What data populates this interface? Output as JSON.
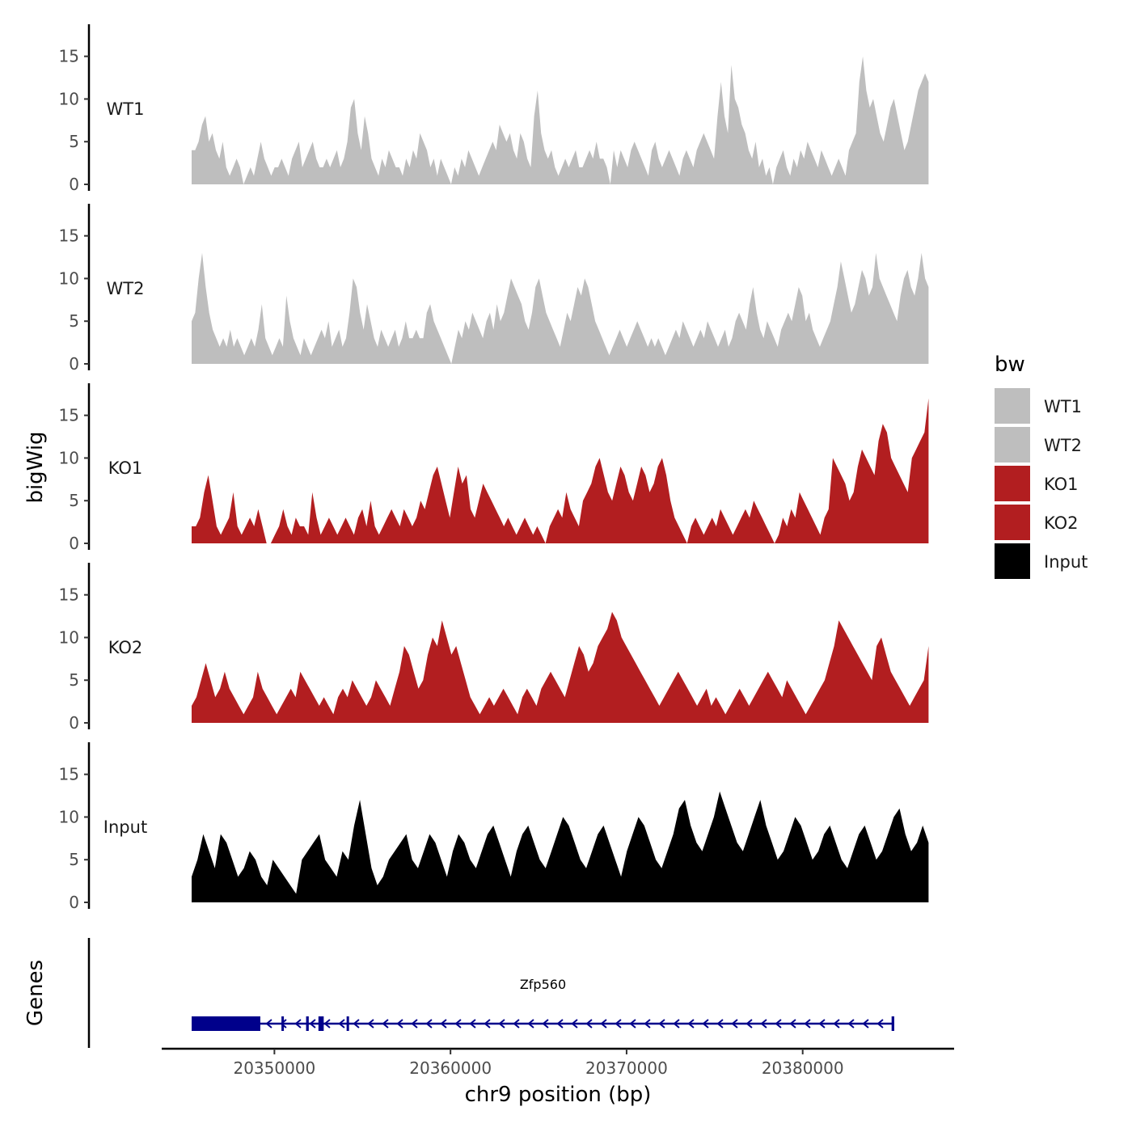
{
  "chart_data": {
    "type": "area",
    "chromosome": "chr9",
    "xlabel": "chr9 position (bp)",
    "ylabel": "bigWig",
    "genes_label": "Genes",
    "xlim": [
      20343600,
      20388600
    ],
    "x_range": [
      20345300,
      20387150
    ],
    "x_ticks": [
      20350000,
      20360000,
      20370000,
      20380000
    ],
    "x_tick_labels": [
      "20350000",
      "20360000",
      "20370000",
      "20380000"
    ],
    "ylim": [
      0,
      18
    ],
    "y_ticks": [
      0,
      5,
      10,
      15
    ],
    "y_tick_labels": [
      "0",
      "5",
      "10",
      "15"
    ],
    "legend": {
      "title": "bw",
      "position": "right",
      "entries": [
        {
          "label": "WT1",
          "color": "#bebebe"
        },
        {
          "label": "WT2",
          "color": "#bebebe"
        },
        {
          "label": "KO1",
          "color": "#b21e20"
        },
        {
          "label": "KO2",
          "color": "#b21e20"
        },
        {
          "label": "Input",
          "color": "#000000"
        }
      ]
    },
    "series": [
      {
        "name": "WT1",
        "color": "#bebebe",
        "values": [
          4,
          4,
          5,
          7,
          8,
          5,
          6,
          4,
          3,
          5,
          2,
          1,
          2,
          3,
          2,
          0,
          1,
          2,
          1,
          3,
          5,
          3,
          2,
          1,
          2,
          2,
          3,
          2,
          1,
          3,
          4,
          5,
          2,
          3,
          4,
          5,
          3,
          2,
          2,
          3,
          2,
          3,
          4,
          2,
          3,
          5,
          9,
          10,
          6,
          4,
          8,
          6,
          3,
          2,
          1,
          3,
          2,
          4,
          3,
          2,
          2,
          1,
          3,
          2,
          4,
          3,
          6,
          5,
          4,
          2,
          3,
          1,
          3,
          2,
          1,
          0,
          2,
          1,
          3,
          2,
          4,
          3,
          2,
          1,
          2,
          3,
          4,
          5,
          4,
          7,
          6,
          5,
          6,
          4,
          3,
          6,
          5,
          3,
          2,
          8,
          11,
          6,
          4,
          3,
          4,
          2,
          1,
          2,
          3,
          2,
          3,
          4,
          2,
          2,
          3,
          4,
          3,
          5,
          3,
          3,
          2,
          0,
          4,
          2,
          4,
          3,
          2,
          4,
          5,
          4,
          3,
          2,
          1,
          4,
          5,
          3,
          2,
          3,
          4,
          3,
          2,
          1,
          3,
          4,
          3,
          2,
          4,
          5,
          6,
          5,
          4,
          3,
          8,
          12,
          8,
          6,
          14,
          10,
          9,
          7,
          6,
          4,
          3,
          5,
          2,
          3,
          1,
          2,
          0,
          2,
          3,
          4,
          2,
          1,
          3,
          2,
          4,
          3,
          5,
          4,
          3,
          2,
          4,
          3,
          2,
          1,
          2,
          3,
          2,
          1,
          4,
          5,
          6,
          12,
          15,
          11,
          9,
          10,
          8,
          6,
          5,
          7,
          9,
          10,
          8,
          6,
          4,
          5,
          7,
          9,
          11,
          12,
          13,
          12
        ]
      },
      {
        "name": "WT2",
        "color": "#bebebe",
        "values": [
          5,
          6,
          10,
          13,
          9,
          6,
          4,
          3,
          2,
          3,
          2,
          4,
          2,
          3,
          2,
          1,
          2,
          3,
          2,
          4,
          7,
          3,
          2,
          1,
          2,
          3,
          2,
          8,
          5,
          3,
          2,
          1,
          3,
          2,
          1,
          2,
          3,
          4,
          3,
          5,
          2,
          3,
          4,
          2,
          3,
          6,
          10,
          9,
          6,
          4,
          7,
          5,
          3,
          2,
          4,
          3,
          2,
          3,
          4,
          2,
          3,
          5,
          3,
          3,
          4,
          3,
          3,
          6,
          7,
          5,
          4,
          3,
          2,
          1,
          0,
          2,
          4,
          3,
          5,
          4,
          6,
          5,
          4,
          3,
          5,
          6,
          4,
          7,
          5,
          6,
          8,
          10,
          9,
          8,
          7,
          5,
          4,
          6,
          9,
          10,
          8,
          6,
          5,
          4,
          3,
          2,
          4,
          6,
          5,
          7,
          9,
          8,
          10,
          9,
          7,
          5,
          4,
          3,
          2,
          1,
          2,
          3,
          4,
          3,
          2,
          3,
          4,
          5,
          4,
          3,
          2,
          3,
          2,
          3,
          2,
          1,
          2,
          3,
          4,
          3,
          5,
          4,
          3,
          2,
          3,
          4,
          3,
          5,
          4,
          3,
          2,
          3,
          4,
          2,
          3,
          5,
          6,
          5,
          4,
          7,
          9,
          6,
          4,
          3,
          5,
          4,
          3,
          2,
          4,
          5,
          6,
          5,
          7,
          9,
          8,
          5,
          6,
          4,
          3,
          2,
          3,
          4,
          5,
          7,
          9,
          12,
          10,
          8,
          6,
          7,
          9,
          11,
          10,
          8,
          9,
          13,
          10,
          9,
          8,
          7,
          6,
          5,
          8,
          10,
          11,
          9,
          8,
          10,
          13,
          10,
          9
        ]
      },
      {
        "name": "KO1",
        "color": "#b21e20",
        "values": [
          2,
          2,
          3,
          6,
          8,
          5,
          2,
          1,
          2,
          3,
          6,
          2,
          1,
          2,
          3,
          2,
          4,
          2,
          0,
          0,
          1,
          2,
          4,
          2,
          1,
          3,
          2,
          2,
          1,
          6,
          3,
          1,
          2,
          3,
          2,
          1,
          2,
          3,
          2,
          1,
          3,
          4,
          2,
          5,
          2,
          1,
          2,
          3,
          4,
          3,
          2,
          4,
          3,
          2,
          3,
          5,
          4,
          6,
          8,
          9,
          7,
          5,
          3,
          6,
          9,
          7,
          8,
          4,
          3,
          5,
          7,
          6,
          5,
          4,
          3,
          2,
          3,
          2,
          1,
          2,
          3,
          2,
          1,
          2,
          1,
          0,
          2,
          3,
          4,
          3,
          6,
          4,
          3,
          2,
          5,
          6,
          7,
          9,
          10,
          8,
          6,
          5,
          7,
          9,
          8,
          6,
          5,
          7,
          9,
          8,
          6,
          7,
          9,
          10,
          8,
          5,
          3,
          2,
          1,
          0,
          2,
          3,
          2,
          1,
          2,
          3,
          2,
          4,
          3,
          2,
          1,
          2,
          3,
          4,
          3,
          5,
          4,
          3,
          2,
          1,
          0,
          1,
          3,
          2,
          4,
          3,
          6,
          5,
          4,
          3,
          2,
          1,
          3,
          4,
          10,
          9,
          8,
          7,
          5,
          6,
          9,
          11,
          10,
          9,
          8,
          12,
          14,
          13,
          10,
          9,
          8,
          7,
          6,
          10,
          11,
          12,
          13,
          17
        ]
      },
      {
        "name": "KO2",
        "color": "#b21e20",
        "values": [
          2,
          3,
          5,
          7,
          5,
          3,
          4,
          6,
          4,
          3,
          2,
          1,
          2,
          3,
          6,
          4,
          3,
          2,
          1,
          2,
          3,
          4,
          3,
          6,
          5,
          4,
          3,
          2,
          3,
          2,
          1,
          3,
          4,
          3,
          5,
          4,
          3,
          2,
          3,
          5,
          4,
          3,
          2,
          4,
          6,
          9,
          8,
          6,
          4,
          5,
          8,
          10,
          9,
          12,
          10,
          8,
          9,
          7,
          5,
          3,
          2,
          1,
          2,
          3,
          2,
          3,
          4,
          3,
          2,
          1,
          3,
          4,
          3,
          2,
          4,
          5,
          6,
          5,
          4,
          3,
          5,
          7,
          9,
          8,
          6,
          7,
          9,
          10,
          11,
          13,
          12,
          10,
          9,
          8,
          7,
          6,
          5,
          4,
          3,
          2,
          3,
          4,
          5,
          6,
          5,
          4,
          3,
          2,
          3,
          4,
          2,
          3,
          2,
          1,
          2,
          3,
          4,
          3,
          2,
          3,
          4,
          5,
          6,
          5,
          4,
          3,
          5,
          4,
          3,
          2,
          1,
          2,
          3,
          4,
          5,
          7,
          9,
          12,
          11,
          10,
          9,
          8,
          7,
          6,
          5,
          9,
          10,
          8,
          6,
          5,
          4,
          3,
          2,
          3,
          4,
          5,
          9
        ]
      },
      {
        "name": "Input",
        "color": "#000000",
        "values": [
          3,
          5,
          8,
          6,
          4,
          8,
          7,
          5,
          3,
          4,
          6,
          5,
          3,
          2,
          5,
          4,
          3,
          2,
          1,
          5,
          6,
          7,
          8,
          5,
          4,
          3,
          6,
          5,
          9,
          12,
          8,
          4,
          2,
          3,
          5,
          6,
          7,
          8,
          5,
          4,
          6,
          8,
          7,
          5,
          3,
          6,
          8,
          7,
          5,
          4,
          6,
          8,
          9,
          7,
          5,
          3,
          6,
          8,
          9,
          7,
          5,
          4,
          6,
          8,
          10,
          9,
          7,
          5,
          4,
          6,
          8,
          9,
          7,
          5,
          3,
          6,
          8,
          10,
          9,
          7,
          5,
          4,
          6,
          8,
          11,
          12,
          9,
          7,
          6,
          8,
          10,
          13,
          11,
          9,
          7,
          6,
          8,
          10,
          12,
          9,
          7,
          5,
          6,
          8,
          10,
          9,
          7,
          5,
          6,
          8,
          9,
          7,
          5,
          4,
          6,
          8,
          9,
          7,
          5,
          6,
          8,
          10,
          11,
          8,
          6,
          7,
          9,
          7
        ]
      }
    ],
    "genes": [
      {
        "name": "Zfp560",
        "start": 20345300,
        "end": 20385200,
        "strand": "-",
        "color": "#00008b",
        "exons": [
          [
            20345300,
            20349200
          ],
          [
            20350400,
            20350500
          ],
          [
            20351800,
            20351950
          ],
          [
            20352500,
            20352800
          ],
          [
            20354100,
            20354200
          ],
          [
            20385050,
            20385200
          ]
        ]
      }
    ]
  }
}
